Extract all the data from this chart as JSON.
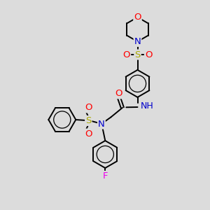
{
  "bg_color": "#dcdcdc",
  "atom_colors": {
    "C": "#000000",
    "N": "#0000cc",
    "O": "#ff0000",
    "S": "#aaaa00",
    "F": "#ee00ee",
    "H": "#008888"
  },
  "bond_color": "#000000",
  "bond_width": 1.4,
  "label_fontsize": 9.5
}
